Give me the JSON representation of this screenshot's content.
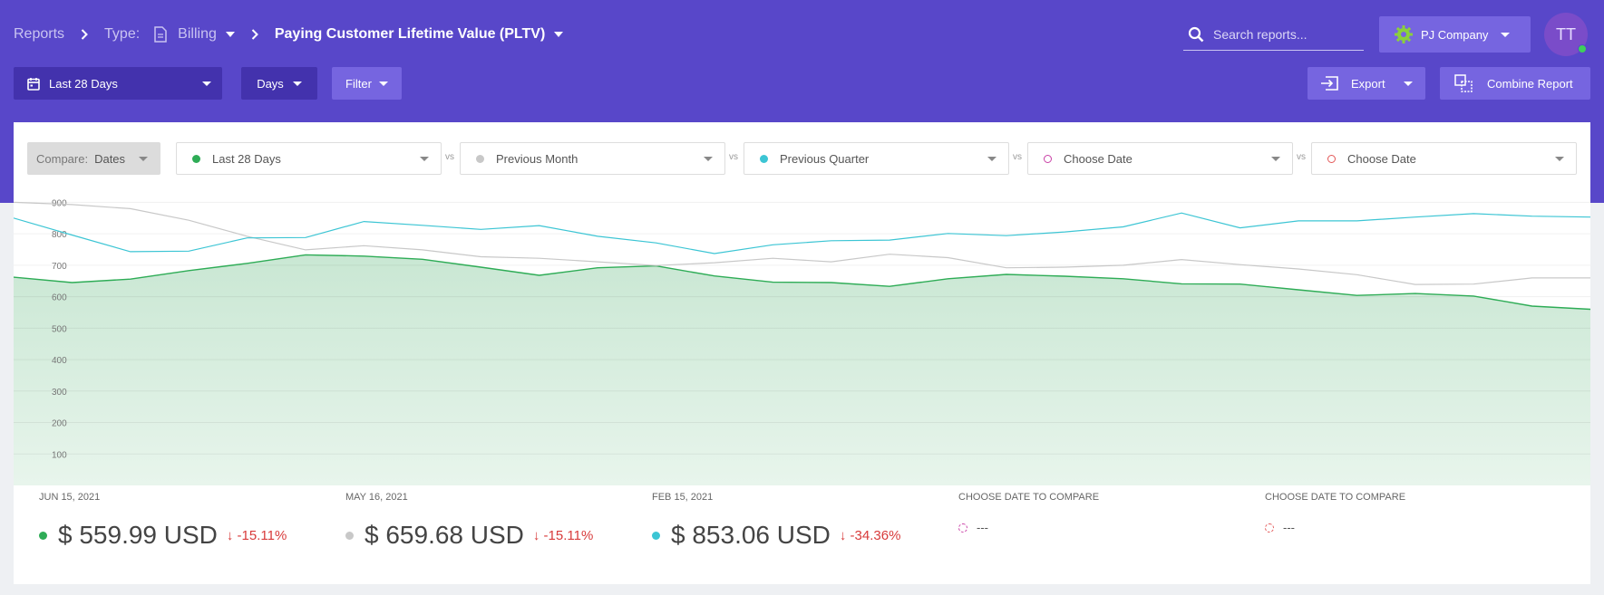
{
  "header": {
    "breadcrumb": {
      "root": "Reports",
      "type_label": "Type:",
      "type_value": "Billing",
      "current": "Paying Customer Lifetime Value (PLTV)"
    },
    "search": {
      "placeholder": "Search reports..."
    },
    "company": "PJ Company",
    "avatar_initials": "TT"
  },
  "toolbar": {
    "date_range": "Last 28 Days",
    "granularity": "Days",
    "filter": "Filter",
    "export": "Export",
    "combine": "Combine Report"
  },
  "compare": {
    "label": "Compare:",
    "mode": "Dates",
    "vs": "vs",
    "periods": [
      {
        "label": "Last 28 Days",
        "color": "#2eac56",
        "filled": true
      },
      {
        "label": "Previous Month",
        "color": "#c8c8c8",
        "filled": true
      },
      {
        "label": "Previous Quarter",
        "color": "#3cc5d4",
        "filled": true
      },
      {
        "label": "Choose Date",
        "color": "#c93fa6",
        "filled": false
      },
      {
        "label": "Choose Date",
        "color": "#e35858",
        "filled": false
      }
    ]
  },
  "chart_data": {
    "type": "area",
    "ylim": [
      0,
      930
    ],
    "yticks": [
      100,
      200,
      300,
      400,
      500,
      600,
      700,
      800,
      900
    ],
    "grid": true,
    "legend": "none",
    "series": [
      {
        "name": "Last 28 Days",
        "color": "#2eac56",
        "fill": true,
        "values": [
          662,
          645,
          656,
          683,
          706,
          733,
          729,
          719,
          694,
          668,
          692,
          698,
          666,
          646,
          645,
          633,
          657,
          671,
          665,
          657,
          641,
          640,
          622,
          604,
          610,
          602,
          570,
          559.99
        ]
      },
      {
        "name": "Previous Month",
        "color": "#c8c8c8",
        "fill": false,
        "values": [
          900,
          893,
          880,
          843,
          792,
          749,
          762,
          749,
          727,
          722,
          711,
          699,
          708,
          722,
          711,
          735,
          724,
          692,
          694,
          700,
          718,
          702,
          688,
          670,
          639,
          640,
          659.68,
          659.68
        ]
      },
      {
        "name": "Previous Quarter",
        "color": "#3cc5d4",
        "fill": false,
        "values": [
          850,
          796,
          743,
          745,
          787,
          788,
          839,
          827,
          814,
          826,
          792,
          771,
          737,
          765,
          778,
          780,
          801,
          794,
          806,
          822,
          866,
          819,
          841,
          841,
          853,
          864,
          856,
          853.06
        ]
      }
    ]
  },
  "metrics": [
    {
      "date": "JUN 15, 2021",
      "value": "$ 559.99 USD",
      "change": "↓ -15.11%",
      "color": "#2eac56"
    },
    {
      "date": "MAY 16, 2021",
      "value": "$ 659.68 USD",
      "change": "↓ -15.11%",
      "color": "#c8c8c8"
    },
    {
      "date": "FEB 15, 2021",
      "value": "$ 853.06 USD",
      "change": "↓ -34.36%",
      "color": "#3cc5d4"
    },
    {
      "date": "CHOOSE DATE TO COMPARE",
      "value": "---",
      "color": "#c93fa6"
    },
    {
      "date": "CHOOSE DATE TO COMPARE",
      "value": "---",
      "color": "#e35858"
    }
  ]
}
